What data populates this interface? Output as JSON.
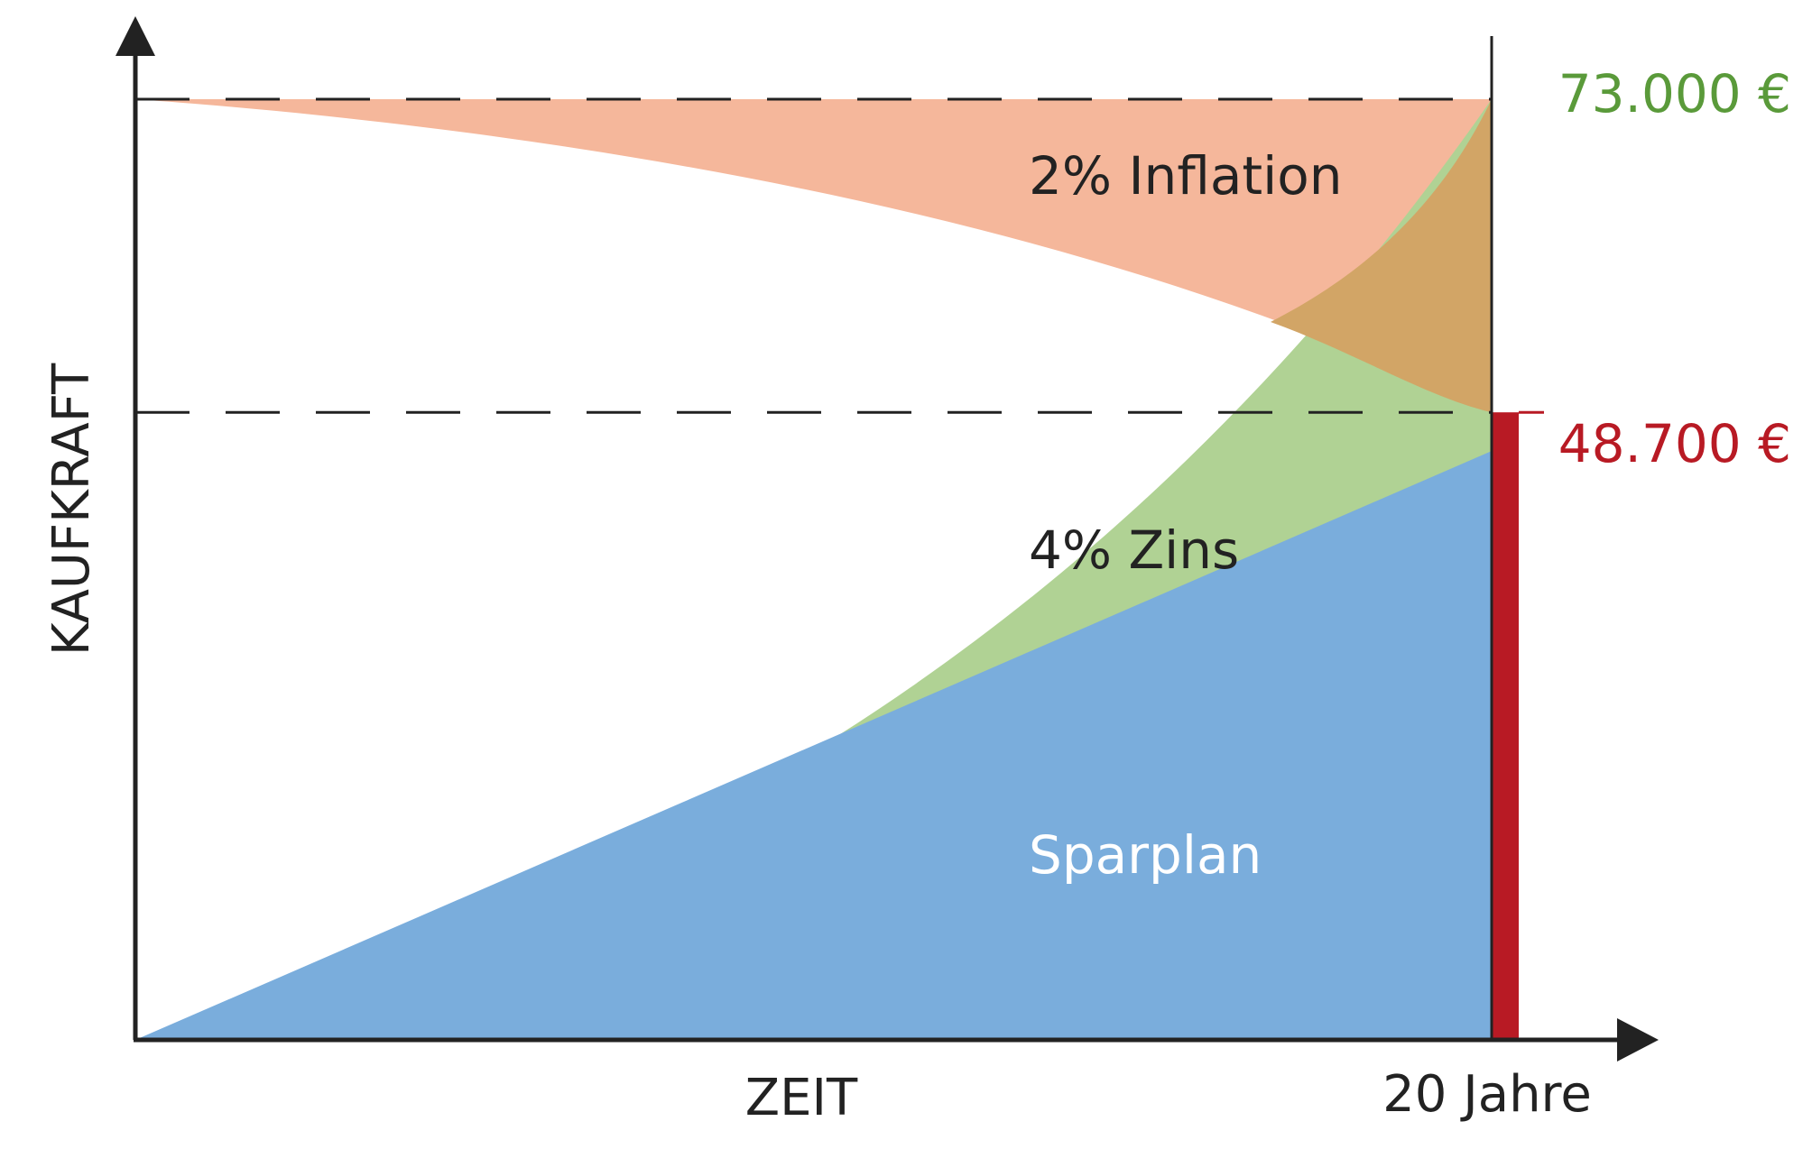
{
  "chart_data": {
    "type": "area",
    "xlabel": "ZEIT",
    "ylabel": "KAUFKRAFT",
    "x_end_label": "20 Jahre",
    "x": [
      0,
      20
    ],
    "series": [
      {
        "name": "Sparplan",
        "values_start_end": [
          0,
          45700
        ],
        "color": "#7aaddc",
        "label_color": "#ffffff"
      },
      {
        "name": "4% Zins",
        "values_start_end": [
          0,
          73000
        ],
        "color": "#b0d294",
        "label_color": "#222222"
      },
      {
        "name": "2% Inflation",
        "values_start_end": [
          73000,
          48700
        ],
        "color": "#f5b79b",
        "overlap_color": "#d2a566",
        "label_color": "#222222"
      }
    ],
    "reference_lines": [
      {
        "value": 73000,
        "label": "73.000 €",
        "color": "#5a9a3a"
      },
      {
        "value": 48700,
        "label": "48.700 €",
        "color": "#b81a24"
      }
    ],
    "marker_bar": {
      "value": 48700,
      "color": "#b81a24"
    },
    "ylim": [
      0,
      73000
    ],
    "grid": false
  }
}
